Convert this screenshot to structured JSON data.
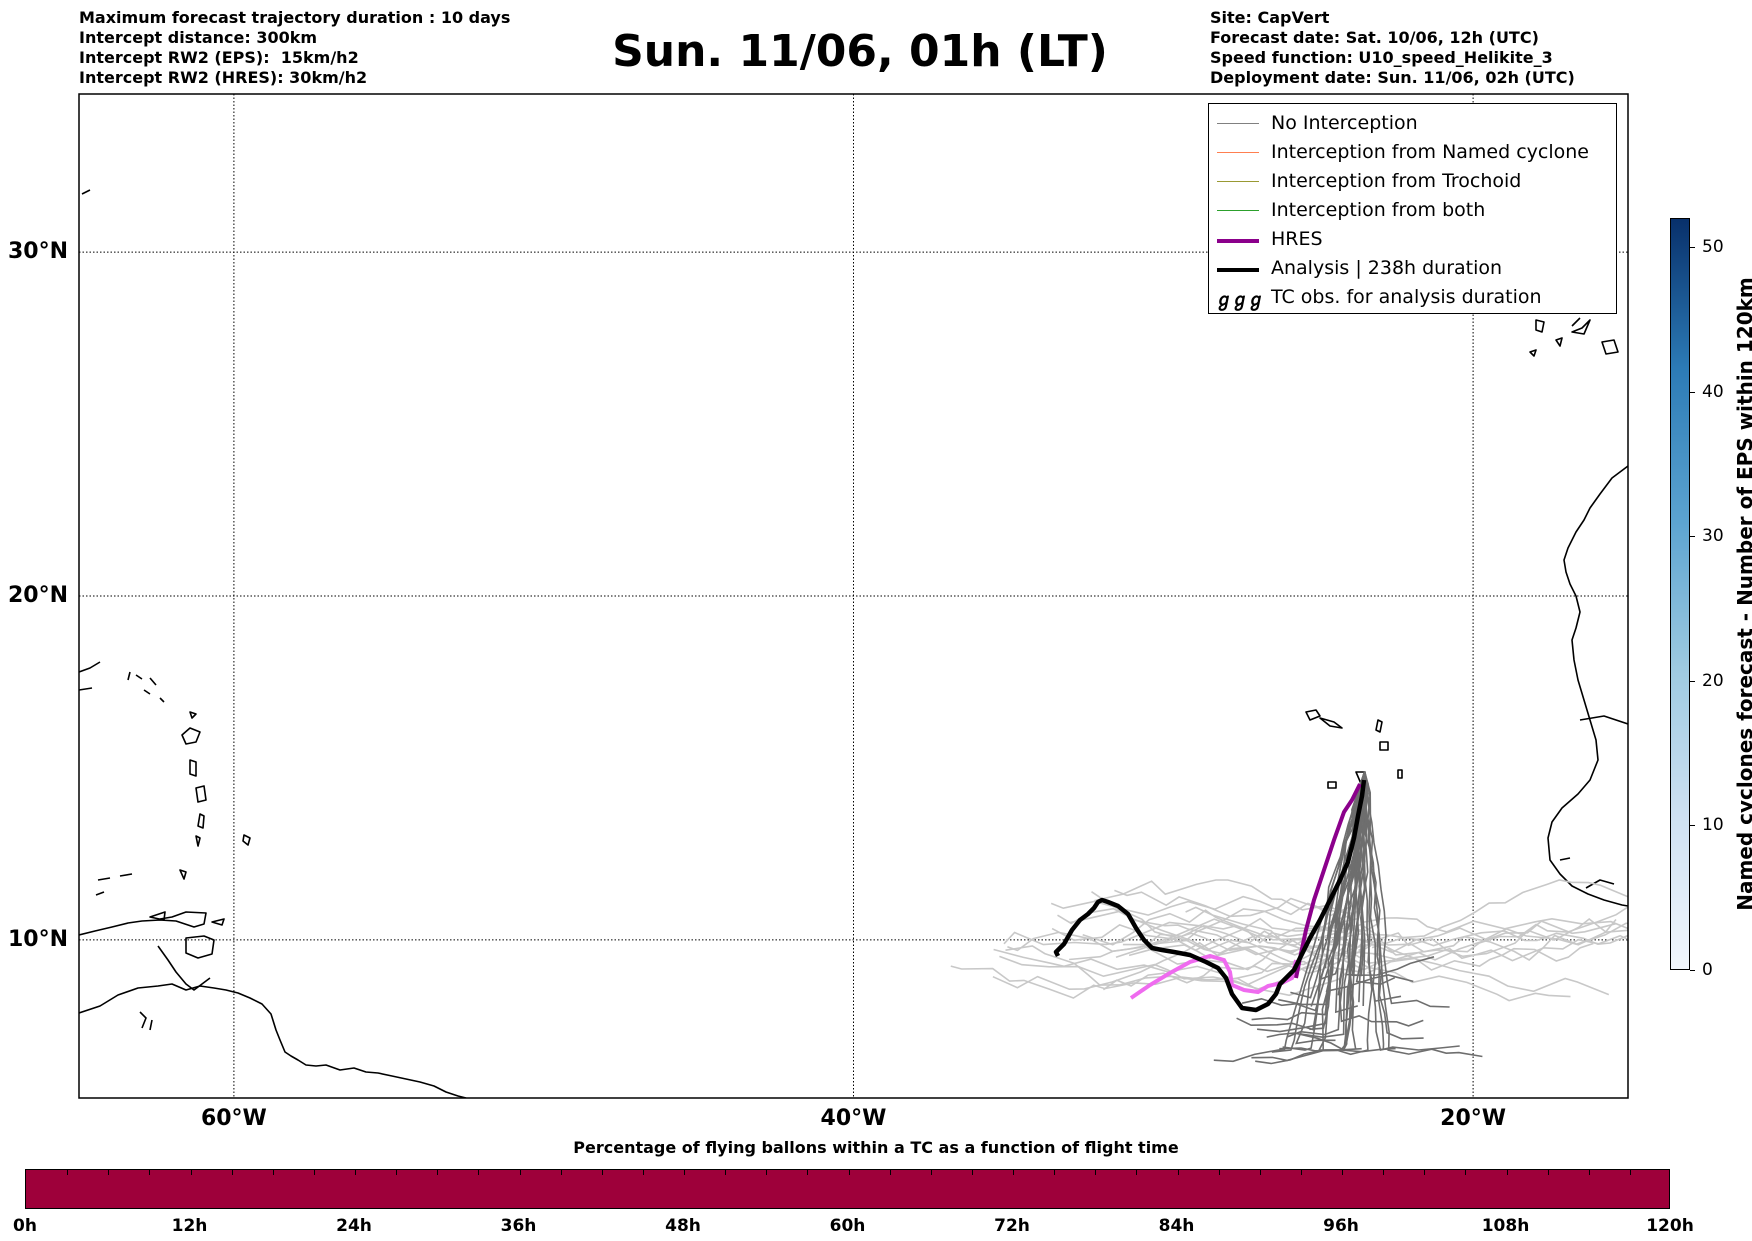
{
  "header_left": [
    "Maximum forecast trajectory duration : 10 days",
    "Intercept distance: 300km",
    "Intercept RW2 (EPS):  15km/h2",
    "Intercept RW2 (HRES): 30km/h2"
  ],
  "header_right": [
    "Site: CapVert",
    "Forecast date: Sat. 10/06, 12h (UTC)",
    "Speed function: U10_speed_Helikite_3",
    "Deployment date: Sun. 11/06, 02h (UTC)"
  ],
  "title": "Sun. 11/06, 01h (LT)",
  "map": {
    "lon_range": [
      -65,
      -15
    ],
    "lat_range": [
      5.4,
      34.6
    ],
    "lat_ticks": [
      {
        "value": 30,
        "label": "30°N"
      },
      {
        "value": 20,
        "label": "20°N"
      },
      {
        "value": 10,
        "label": "10°N"
      }
    ],
    "lon_ticks": [
      {
        "value": -60,
        "label": "60°W"
      },
      {
        "value": -40,
        "label": "40°W"
      },
      {
        "value": -20,
        "label": "20°W"
      }
    ],
    "gridlines": true,
    "launch_site": {
      "lon": -23.5,
      "lat": 14.9
    }
  },
  "legend": {
    "position": "top-right",
    "items": [
      {
        "label": "No Interception",
        "color": "#808080",
        "style": "thin-line"
      },
      {
        "label": "Interception from Named cyclone",
        "color": "#ff7f50",
        "style": "thin-line"
      },
      {
        "label": "Interception from Trochoid",
        "color": "#999933",
        "style": "thin-line"
      },
      {
        "label": "Interception from both",
        "color": "#2ca02c",
        "style": "thin-line"
      },
      {
        "label": "HRES",
        "color": "#8b008b",
        "style": "thick-line"
      },
      {
        "label": "Analysis | 238h duration",
        "color": "#000000",
        "style": "thick-line"
      },
      {
        "label": "TC obs. for analysis duration",
        "glyph": "ℊℊℊ",
        "color": "#000000",
        "style": "symbol"
      }
    ]
  },
  "colorbar": {
    "title": "Named cyclones forecast - Number of EPS within 120km",
    "min": 0,
    "max": 52,
    "ticks": [
      0,
      10,
      20,
      30,
      40,
      50
    ],
    "colormap": "Blues"
  },
  "flight_time_strip": {
    "title": "Percentage of flying ballons within a TC as a function of flight time",
    "color": "#9e003a",
    "labels": [
      "0h",
      "12h",
      "24h",
      "36h",
      "48h",
      "60h",
      "72h",
      "84h",
      "96h",
      "108h",
      "120h"
    ]
  }
}
